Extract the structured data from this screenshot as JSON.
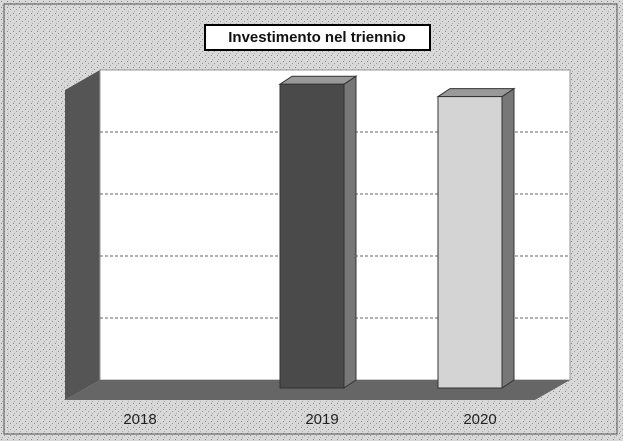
{
  "chart_data": {
    "type": "bar3d",
    "title": "Investimento nel triennio",
    "categories": [
      "2018",
      "2019",
      "2020"
    ],
    "values": [
      0,
      4.9,
      4.7
    ],
    "colors": [
      "#3a3a3a",
      "#4a4a4a",
      "#d4d4d4"
    ],
    "ylim": [
      0,
      5
    ],
    "yticks": [
      1,
      2,
      3,
      4
    ],
    "grid": true
  }
}
